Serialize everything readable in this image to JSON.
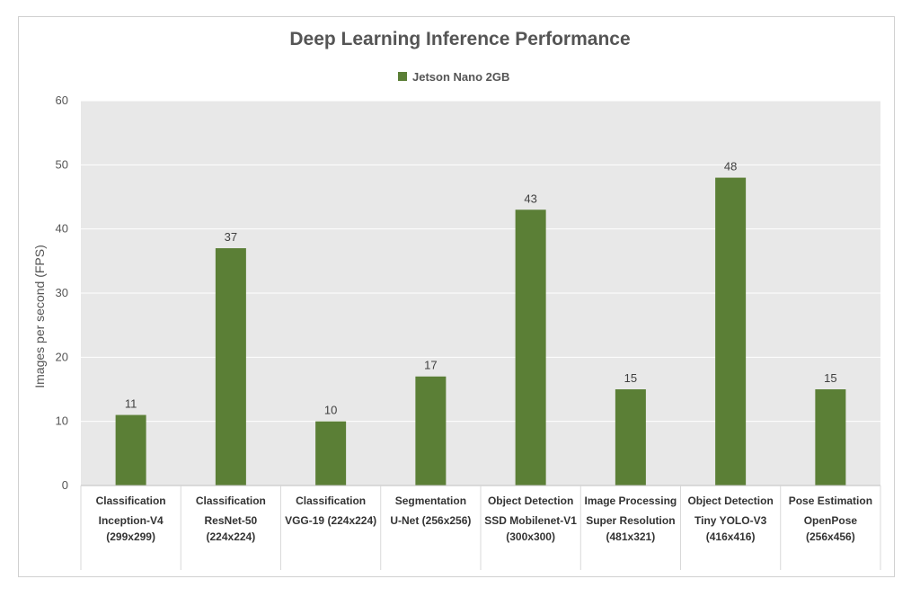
{
  "chart_data": {
    "type": "bar",
    "title": "Deep Learning Inference Performance",
    "ylabel": "Images per second (FPS)",
    "xlabel": "",
    "ylim": [
      0,
      60
    ],
    "yticks": [
      "0",
      "10",
      "20",
      "30",
      "40",
      "50",
      "60"
    ],
    "grid": true,
    "legend_position": "top-center",
    "color": "#5b7f36",
    "categories": [
      {
        "group": "Classification",
        "model": "Inception-V4 (299x299)"
      },
      {
        "group": "Classification",
        "model": "ResNet-50 (224x224)"
      },
      {
        "group": "Classification",
        "model": "VGG-19 (224x224)"
      },
      {
        "group": "Segmentation",
        "model": "U-Net (256x256)"
      },
      {
        "group": "Object Detection",
        "model": "SSD Mobilenet-V1 (300x300)"
      },
      {
        "group": "Image Processing",
        "model": "Super Resolution (481x321)"
      },
      {
        "group": "Object Detection",
        "model": "Tiny YOLO-V3 (416x416)"
      },
      {
        "group": "Pose Estimation",
        "model": "OpenPose (256x456)"
      }
    ],
    "series": [
      {
        "name": "Jetson Nano 2GB",
        "values": [
          11,
          37,
          10,
          17,
          43,
          15,
          48,
          15
        ]
      }
    ]
  }
}
